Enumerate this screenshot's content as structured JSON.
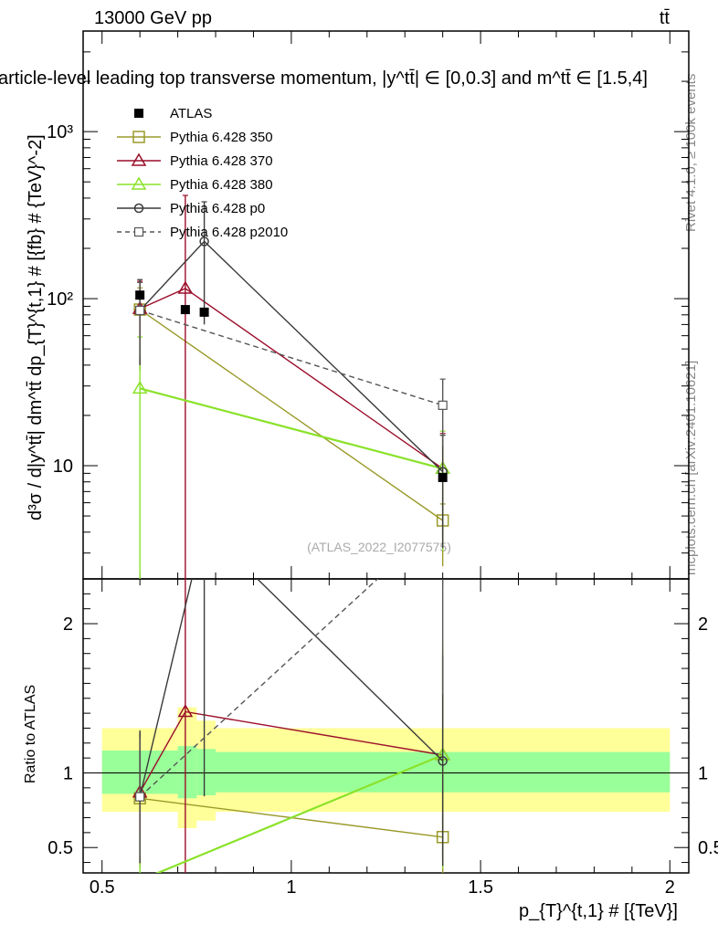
{
  "header": {
    "left": "13000 GeV pp",
    "right": "tt̄",
    "title": "article-level leading top transverse momentum, |y^tt̄| ∈ [0,0.3] and m^tt̄ ∈ [1.5,4]"
  },
  "side_labels": {
    "rivet": "Rivet 4.1.0, ≥ 100k events",
    "site": "mcplots.cern.ch [arXiv:2401.10621]"
  },
  "watermark": "(ATLAS_2022_I2077575)",
  "colors": {
    "atlas": "#000000",
    "p350": "#9a9a2a",
    "p370": "#9b0f2a",
    "p380": "#8ae22a",
    "p0": "#3a3a3a",
    "p2010": "#555555",
    "band_outer": "#ffff99",
    "band_inner": "#99ff99"
  },
  "chart_data": {
    "type": "scatter",
    "main": {
      "ylabel": "d³σ / d|y^tt̄| dm^tt̄ dp_{T}^{t,1} # [{fb} # {TeV}^-2]",
      "yscale": "log",
      "ylim": [
        2.1,
        4000
      ],
      "yticks": [
        10,
        100,
        1000
      ],
      "ytick_labels": [
        "10",
        "10²",
        "10³"
      ]
    },
    "ratio": {
      "ylabel": "Ratio to ATLAS",
      "ylim": [
        0.33,
        2.3
      ],
      "yticks": [
        0.5,
        1,
        2
      ],
      "ytick_labels": [
        "0.5",
        "1",
        "2"
      ]
    },
    "x": {
      "label": "p_{T}^{t,1} # [{TeV}]",
      "xlim": [
        0.45,
        2.05
      ],
      "ticks": [
        0.5,
        1,
        1.5,
        2
      ],
      "tick_labels": [
        "0.5",
        "1",
        "1.5",
        "2"
      ]
    },
    "atlas": {
      "name": "ATLAS",
      "points": [
        {
          "x": 0.6,
          "y": 105
        },
        {
          "x": 0.72,
          "y": 86
        },
        {
          "x": 0.77,
          "y": 83
        },
        {
          "x": 1.4,
          "y": 8.5
        }
      ]
    },
    "series": [
      {
        "key": "p350",
        "name": "Pythia 6.428 350",
        "marker": "square-open",
        "dash": false,
        "x": [
          0.6,
          1.4
        ],
        "y": [
          86,
          4.7
        ],
        "yerr_lo": [
          40,
          2.2
        ],
        "yerr_hi": [
          30,
          1.2
        ],
        "ratio": [
          0.83,
          0.57
        ]
      },
      {
        "key": "p370",
        "name": "Pythia 6.428 370",
        "marker": "triangle-open",
        "dash": false,
        "x": [
          0.6,
          0.72,
          1.4
        ],
        "y": [
          87,
          115,
          9.6
        ],
        "yerr_lo": [
          50,
          115,
          6
        ],
        "yerr_hi": [
          40,
          300,
          6
        ],
        "ratio": [
          0.87,
          1.41,
          1.12
        ]
      },
      {
        "key": "p380",
        "name": "Pythia 6.428 380",
        "marker": "triangle-open",
        "dash": false,
        "x": [
          0.6,
          1.4
        ],
        "y": [
          29,
          9.6
        ],
        "yerr_lo": [
          29,
          6.5
        ],
        "yerr_hi": [
          30,
          6.5
        ],
        "ratio": [
          0.28,
          1.12
        ]
      },
      {
        "key": "p0",
        "name": "Pythia 6.428 p0",
        "marker": "circle-open",
        "dash": false,
        "x": [
          0.6,
          0.77,
          1.4
        ],
        "y": [
          85,
          220,
          9.2
        ],
        "yerr_lo": [
          45,
          150,
          6
        ],
        "yerr_hi": [
          45,
          160,
          6
        ],
        "ratio": [
          0.84,
          2.65,
          1.08
        ]
      },
      {
        "key": "p2010",
        "name": "Pythia 6.428 p2010",
        "marker": "square-open-small",
        "dash": true,
        "x": [
          0.6,
          1.4
        ],
        "y": [
          85,
          23
        ],
        "yerr_lo": [
          40,
          10
        ],
        "yerr_hi": [
          40,
          10
        ],
        "ratio": [
          0.84,
          2.7
        ]
      }
    ],
    "bands": {
      "outer": [
        {
          "x0": 0.5,
          "x1": 0.7,
          "lo": 0.74,
          "hi": 1.3
        },
        {
          "x0": 0.7,
          "x1": 0.75,
          "lo": 0.63,
          "hi": 1.44
        },
        {
          "x0": 0.75,
          "x1": 0.8,
          "lo": 0.68,
          "hi": 1.35
        },
        {
          "x0": 0.8,
          "x1": 2.0,
          "lo": 0.74,
          "hi": 1.3
        }
      ],
      "inner": [
        {
          "x0": 0.5,
          "x1": 0.7,
          "lo": 0.86,
          "hi": 1.15
        },
        {
          "x0": 0.7,
          "x1": 0.75,
          "lo": 0.83,
          "hi": 1.18
        },
        {
          "x0": 0.75,
          "x1": 0.8,
          "lo": 0.85,
          "hi": 1.16
        },
        {
          "x0": 0.8,
          "x1": 2.0,
          "lo": 0.87,
          "hi": 1.14
        }
      ]
    }
  }
}
